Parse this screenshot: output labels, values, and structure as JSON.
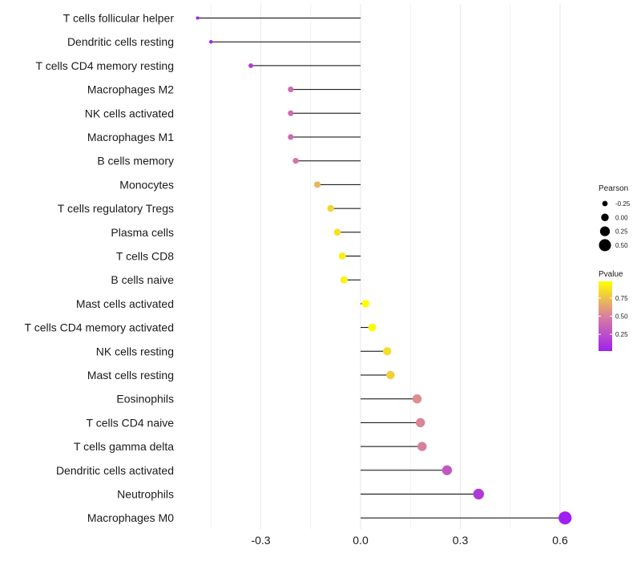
{
  "chart_data": {
    "type": "lollipop",
    "title": "",
    "xlabel": "",
    "ylabel": "",
    "xlim": [
      -0.5,
      0.62
    ],
    "x_ticks": [
      -0.3,
      0.0,
      0.3,
      0.6
    ],
    "x_tick_labels": [
      "-0.3",
      "0.0",
      "0.3",
      "0.6"
    ],
    "grid": true,
    "categories": [
      "T cells follicular helper",
      "Dendritic cells resting",
      "T cells CD4 memory resting",
      "Macrophages M2",
      "NK cells activated",
      "Macrophages M1",
      "B cells memory",
      "Monocytes",
      "T cells regulatory  Tregs ",
      "Plasma cells",
      "T cells CD8",
      "B cells naive",
      "Mast cells activated",
      "T cells CD4 memory activated",
      "NK cells resting",
      "Mast cells resting",
      "Eosinophils",
      "T cells CD4 naive",
      "T cells gamma delta",
      "Dendritic cells activated",
      "Neutrophils",
      "Macrophages M0"
    ],
    "pearson": [
      -0.49,
      -0.45,
      -0.33,
      -0.21,
      -0.21,
      -0.21,
      -0.195,
      -0.13,
      -0.09,
      -0.07,
      -0.055,
      -0.05,
      0.015,
      0.035,
      0.08,
      0.09,
      0.17,
      0.18,
      0.185,
      0.26,
      0.355,
      0.615
    ],
    "pvalue": [
      0.02,
      0.05,
      0.15,
      0.4,
      0.4,
      0.4,
      0.45,
      0.7,
      0.82,
      0.87,
      0.92,
      0.93,
      0.98,
      0.96,
      0.85,
      0.8,
      0.55,
      0.52,
      0.5,
      0.3,
      0.15,
      0.02
    ],
    "legend_placement": "right",
    "legend_size": {
      "title": "Pearson",
      "labels": [
        "-0.25",
        "0.00",
        "0.25",
        "0.50"
      ],
      "values": [
        -0.25,
        0.0,
        0.25,
        0.5
      ]
    },
    "legend_color": {
      "title": "Pvalue",
      "labels": [
        "0.75",
        "0.50",
        "0.25"
      ],
      "values": [
        0.75,
        0.5,
        0.25
      ],
      "range": [
        0.02,
        0.98
      ],
      "low_color": "#a020f0",
      "mid_color": "#d9809e",
      "high_color": "#ffff00"
    }
  }
}
